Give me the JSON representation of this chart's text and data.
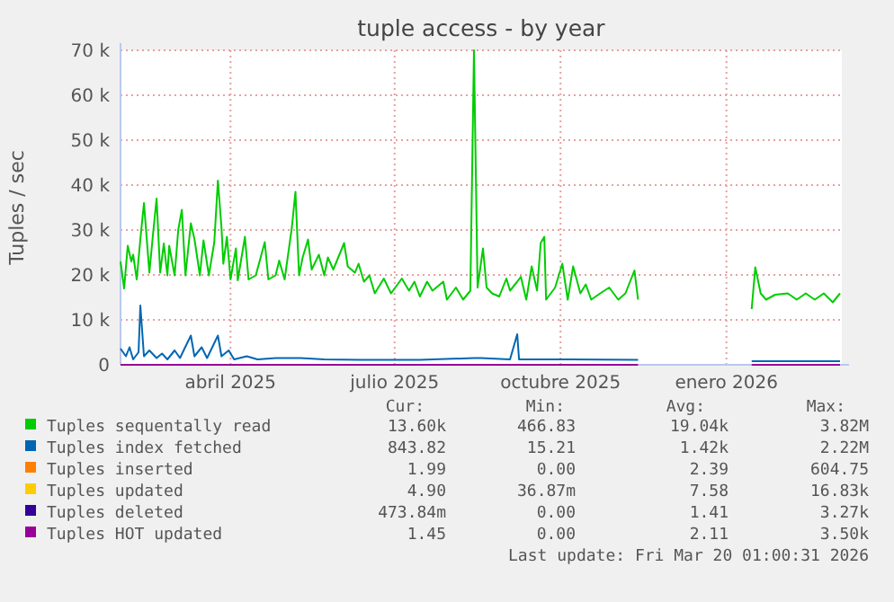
{
  "chart_data": {
    "type": "line",
    "title": "tuple access - by year",
    "ylabel": "Tuples / sec",
    "xlim": [
      "2025-02-13",
      "2026-03-20"
    ],
    "xticks": [
      {
        "value": "2025-04-15",
        "label": "abril 2025"
      },
      {
        "value": "2025-07-15",
        "label": "julio 2025"
      },
      {
        "value": "2025-10-15",
        "label": "octubre 2025"
      },
      {
        "value": "2026-01-15",
        "label": "enero 2026"
      }
    ],
    "ylim": [
      0,
      70000
    ],
    "yticks": [
      0,
      {
        "value": 10000,
        "label": "10 k"
      },
      {
        "value": 20000,
        "label": "20 k"
      },
      {
        "value": 30000,
        "label": "30 k"
      },
      {
        "value": 40000,
        "label": "40 k"
      },
      {
        "value": 50000,
        "label": "50 k"
      },
      {
        "value": 60000,
        "label": "60 k"
      },
      {
        "value": 70000,
        "label": "70 k"
      }
    ],
    "grid": true,
    "legend": "bottom",
    "line_style": "solid",
    "series": [
      {
        "name": "Tuples sequentally read",
        "color": "#00cc00",
        "x": [
          "2025-02-13",
          "2025-02-15",
          "2025-02-17",
          "2025-02-19",
          "2025-02-20",
          "2025-02-22",
          "2025-02-24",
          "2025-02-26",
          "2025-03-01",
          "2025-03-03",
          "2025-03-05",
          "2025-03-07",
          "2025-03-09",
          "2025-03-11",
          "2025-03-12",
          "2025-03-15",
          "2025-03-17",
          "2025-03-19",
          "2025-03-21",
          "2025-03-24",
          "2025-03-26",
          "2025-03-29",
          "2025-03-31",
          "2025-04-03",
          "2025-04-06",
          "2025-04-08",
          "2025-04-10",
          "2025-04-11",
          "2025-04-13",
          "2025-04-15",
          "2025-04-18",
          "2025-04-19",
          "2025-04-23",
          "2025-04-25",
          "2025-04-29",
          "2025-05-04",
          "2025-05-06",
          "2025-05-10",
          "2025-05-12",
          "2025-05-15",
          "2025-05-19",
          "2025-05-21",
          "2025-05-23",
          "2025-05-25",
          "2025-05-28",
          "2025-05-30",
          "2025-06-03",
          "2025-06-06",
          "2025-06-08",
          "2025-06-11",
          "2025-06-17",
          "2025-06-19",
          "2025-06-23",
          "2025-06-25",
          "2025-06-28",
          "2025-07-01",
          "2025-07-04",
          "2025-07-09",
          "2025-07-13",
          "2025-07-19",
          "2025-07-23",
          "2025-07-26",
          "2025-07-29",
          "2025-08-02",
          "2025-08-05",
          "2025-08-11",
          "2025-08-13",
          "2025-08-18",
          "2025-08-22",
          "2025-08-26",
          "2025-08-28",
          "2025-08-30",
          "2025-09-02",
          "2025-09-04",
          "2025-09-07",
          "2025-09-11",
          "2025-09-15",
          "2025-09-17",
          "2025-09-21",
          "2025-09-23",
          "2025-09-26",
          "2025-09-29",
          "2025-10-02",
          "2025-10-04",
          "2025-10-06",
          "2025-10-07",
          "2025-10-12",
          "2025-10-16",
          "2025-10-19",
          "2025-10-22",
          "2025-10-26",
          "2025-10-29",
          "2025-11-01",
          "2025-11-06",
          "2025-11-11",
          "2025-11-16",
          "2025-11-20",
          "2025-11-25",
          "2025-11-27",
          "2025-12-15",
          "2026-01-29",
          "2026-01-31",
          "2026-02-03",
          "2026-02-06",
          "2026-02-11",
          "2026-02-18",
          "2026-02-23",
          "2026-02-28",
          "2026-03-05",
          "2026-03-10",
          "2026-03-15",
          "2026-03-19"
        ],
        "values": [
          23000,
          17000,
          26500,
          23000,
          24500,
          19000,
          28000,
          36000,
          20500,
          29000,
          37000,
          20500,
          27000,
          19900,
          26500,
          19900,
          30000,
          34500,
          19900,
          31500,
          28000,
          19900,
          27700,
          19900,
          27300,
          41000,
          30500,
          22500,
          28500,
          19000,
          25900,
          18800,
          28500,
          19000,
          19900,
          27300,
          19000,
          19900,
          23200,
          19000,
          30500,
          38500,
          19900,
          23900,
          27900,
          21200,
          24500,
          19900,
          23900,
          21200,
          27100,
          21900,
          20500,
          22500,
          18500,
          19900,
          15900,
          19200,
          15900,
          19200,
          16500,
          18500,
          15200,
          18500,
          16500,
          18500,
          14500,
          17200,
          14500,
          16500,
          70000,
          17200,
          25900,
          17200,
          15900,
          15200,
          19200,
          16500,
          18500,
          19600,
          14500,
          21900,
          16500,
          27100,
          28500,
          14500,
          17200,
          22500,
          14500,
          21900,
          15900,
          17900,
          14500,
          15900,
          17200,
          14500,
          15900,
          21000,
          14500,
          null,
          12400,
          21700,
          15900,
          14500,
          15600,
          15900,
          14500,
          15900,
          14500,
          15900,
          13900,
          15900
        ]
      },
      {
        "name": "Tuples index fetched",
        "color": "#0066b3",
        "x": [
          "2025-02-13",
          "2025-02-16",
          "2025-02-18",
          "2025-02-20",
          "2025-02-23",
          "2025-02-24",
          "2025-02-26",
          "2025-03-01",
          "2025-03-05",
          "2025-03-08",
          "2025-03-11",
          "2025-03-15",
          "2025-03-18",
          "2025-03-20",
          "2025-03-24",
          "2025-03-26",
          "2025-03-30",
          "2025-04-02",
          "2025-04-08",
          "2025-04-10",
          "2025-04-14",
          "2025-04-17",
          "2025-04-24",
          "2025-04-30",
          "2025-05-10",
          "2025-05-24",
          "2025-06-06",
          "2025-06-26",
          "2025-07-29",
          "2025-08-28",
          "2025-09-01",
          "2025-09-17",
          "2025-09-21",
          "2025-09-22",
          "2025-10-21",
          "2025-11-27",
          "2025-12-15",
          "2026-01-29",
          "2026-03-19"
        ],
        "values": [
          3600,
          1900,
          3900,
          1200,
          2800,
          13200,
          1900,
          3200,
          1500,
          2500,
          1200,
          3200,
          1500,
          3200,
          6500,
          1900,
          3900,
          1500,
          6500,
          1900,
          3200,
          1200,
          1900,
          1200,
          1500,
          1500,
          1200,
          1100,
          1100,
          1500,
          1500,
          1200,
          6800,
          1200,
          1200,
          1100,
          null,
          800,
          800
        ]
      },
      {
        "name": "Tuples inserted",
        "color": "#ff8000"
      },
      {
        "name": "Tuples updated",
        "color": "#ffcc00"
      },
      {
        "name": "Tuples deleted",
        "color": "#330099"
      },
      {
        "name": "Tuples HOT updated",
        "color": "#990099",
        "x": [
          "2025-02-13",
          "2025-11-27",
          "2025-12-15",
          "2026-01-29",
          "2026-03-19"
        ],
        "values": [
          0,
          0,
          null,
          0,
          0
        ]
      }
    ],
    "annotations": [
      "Cur:",
      "Min:",
      "Avg:",
      "Max:",
      "13.60k",
      "466.83",
      "19.04k",
      "3.82M",
      "843.82",
      "15.21",
      "1.42k",
      "2.22M",
      "1.99",
      "0.00",
      "2.39",
      "604.75",
      "4.90",
      "36.87m",
      "7.58",
      "16.83k",
      "473.84m",
      "0.00",
      "1.41",
      "3.27k",
      "1.45",
      "0.00",
      "2.11",
      "3.50k",
      "Last update: Fri Mar 20 01:00:31 2026"
    ]
  }
}
